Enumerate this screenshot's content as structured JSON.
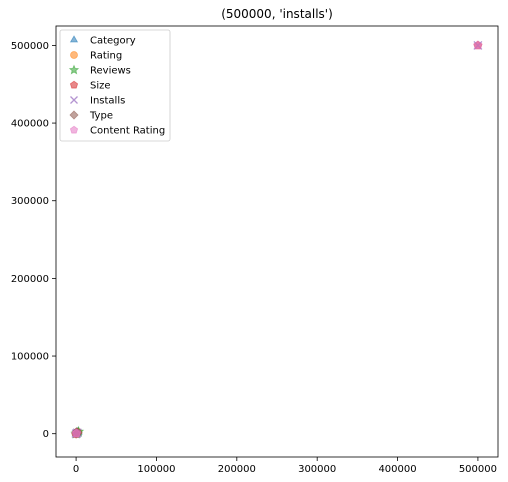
{
  "chart_data": {
    "type": "scatter",
    "title": "(500000, 'installs')",
    "xlabel": "",
    "ylabel": "",
    "xlim": [
      -25000,
      525000
    ],
    "ylim": [
      -30000,
      525000
    ],
    "x_ticks": [
      0,
      100000,
      200000,
      300000,
      400000,
      500000
    ],
    "y_ticks": [
      0,
      100000,
      200000,
      300000,
      400000,
      500000
    ],
    "x_tick_labels": [
      "0",
      "100000",
      "200000",
      "300000",
      "400000",
      "500000"
    ],
    "y_tick_labels": [
      "0",
      "100000",
      "200000",
      "300000",
      "400000",
      "500000"
    ],
    "grid": false,
    "legend_position": "top-left",
    "series": [
      {
        "name": "Category",
        "marker": "triangle",
        "color": "#1f77b4",
        "points": [
          [
            0,
            0
          ],
          [
            500,
            800
          ],
          [
            1500,
            1500
          ],
          [
            2500,
            2000
          ]
        ]
      },
      {
        "name": "Rating",
        "marker": "circle",
        "color": "#ff7f0e",
        "points": [
          [
            0,
            0
          ],
          [
            800,
            1000
          ],
          [
            2000,
            1800
          ]
        ]
      },
      {
        "name": "Reviews",
        "marker": "star",
        "color": "#2ca02c",
        "points": [
          [
            0,
            0
          ],
          [
            1200,
            600
          ],
          [
            3000,
            2500
          ]
        ]
      },
      {
        "name": "Size",
        "marker": "pentagon",
        "color": "#d62728",
        "points": [
          [
            0,
            0
          ],
          [
            1000,
            1500
          ],
          [
            500000,
            500000
          ]
        ]
      },
      {
        "name": "Installs",
        "marker": "x",
        "color": "#9467bd",
        "points": [
          [
            0,
            0
          ],
          [
            1500,
            1200
          ],
          [
            500000,
            500000
          ]
        ]
      },
      {
        "name": "Type",
        "marker": "diamond",
        "color": "#8c564b",
        "points": [
          [
            0,
            0
          ],
          [
            600,
            2000
          ],
          [
            2200,
            1000
          ]
        ]
      },
      {
        "name": "Content Rating",
        "marker": "pentagon",
        "color": "#e377c2",
        "points": [
          [
            0,
            0
          ],
          [
            900,
            900
          ],
          [
            500000,
            500000
          ]
        ]
      }
    ]
  }
}
